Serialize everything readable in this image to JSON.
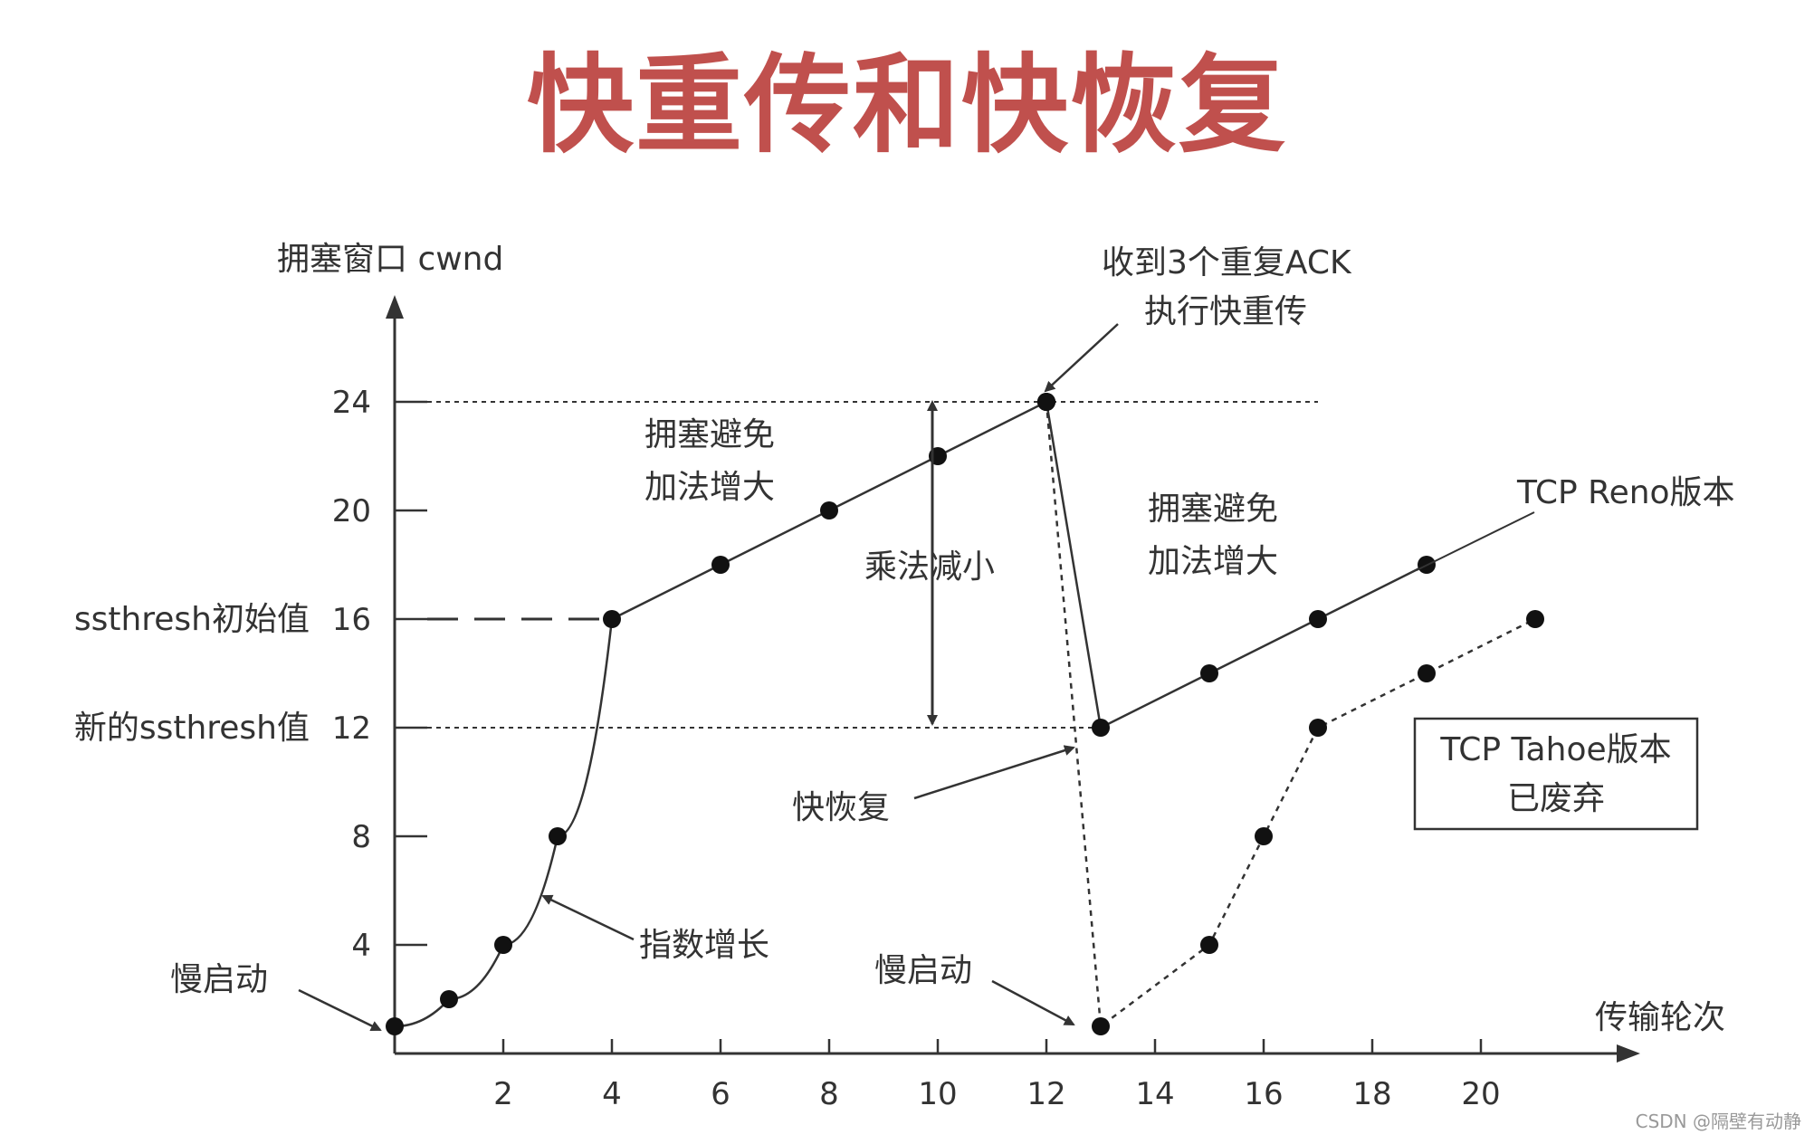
{
  "title": "快重传和快恢复",
  "watermark": "CSDN @隔壁有动静",
  "chart_data": {
    "type": "line",
    "ylabel": "拥塞窗口 cwnd",
    "xlabel": "传输轮次",
    "xlim": [
      0,
      23
    ],
    "ylim": [
      0,
      27
    ],
    "x_ticks": [
      2,
      4,
      6,
      8,
      10,
      12,
      14,
      16,
      18,
      20
    ],
    "y_ticks": [
      4,
      8,
      12,
      16,
      20,
      24
    ],
    "y_tick_labels": {
      "16": "ssthresh初始值",
      "12": "新的ssthresh值"
    },
    "series": [
      {
        "name": "",
        "style": "solid",
        "points": [
          [
            0,
            1
          ],
          [
            1,
            2
          ],
          [
            2,
            4
          ],
          [
            3,
            8
          ],
          [
            4,
            16
          ],
          [
            6,
            18
          ],
          [
            8,
            20
          ],
          [
            10,
            22
          ],
          [
            12,
            24
          ]
        ]
      },
      {
        "name": "TCP Reno版本",
        "style": "solid",
        "points": [
          [
            12,
            24
          ],
          [
            13,
            12
          ],
          [
            15,
            14
          ],
          [
            17,
            16
          ],
          [
            19,
            18
          ]
        ]
      },
      {
        "name": "TCP Tahoe版本\n已废弃",
        "style": "dotted",
        "points": [
          [
            12,
            24
          ],
          [
            13,
            1
          ],
          [
            15,
            4
          ],
          [
            16,
            8
          ],
          [
            17,
            12
          ],
          [
            19,
            14
          ],
          [
            21,
            16
          ]
        ]
      }
    ],
    "reference_lines": [
      {
        "y": 24,
        "x_from": 0.6,
        "x_to": 17,
        "style": "dotted"
      },
      {
        "y": 16,
        "x_from": 0.6,
        "x_to": 4,
        "style": "dashed"
      },
      {
        "y": 12,
        "x_from": 0.6,
        "x_to": 13,
        "style": "dotted"
      }
    ],
    "annotations": {
      "fast_retransmit": [
        "收到3个重复ACK",
        "执行快重传"
      ],
      "congestion_avoid_1": [
        "拥塞避免",
        "加法增大"
      ],
      "multiplicative_decrease": "乘法减小",
      "congestion_avoid_2": [
        "拥塞避免",
        "加法增大"
      ],
      "reno": "TCP Reno版本",
      "tahoe_box": [
        "TCP Tahoe版本",
        "已废弃"
      ],
      "fast_recovery": "快恢复",
      "exponential_growth": "指数增长",
      "slow_start_1": "慢启动",
      "slow_start_2": "慢启动"
    }
  }
}
